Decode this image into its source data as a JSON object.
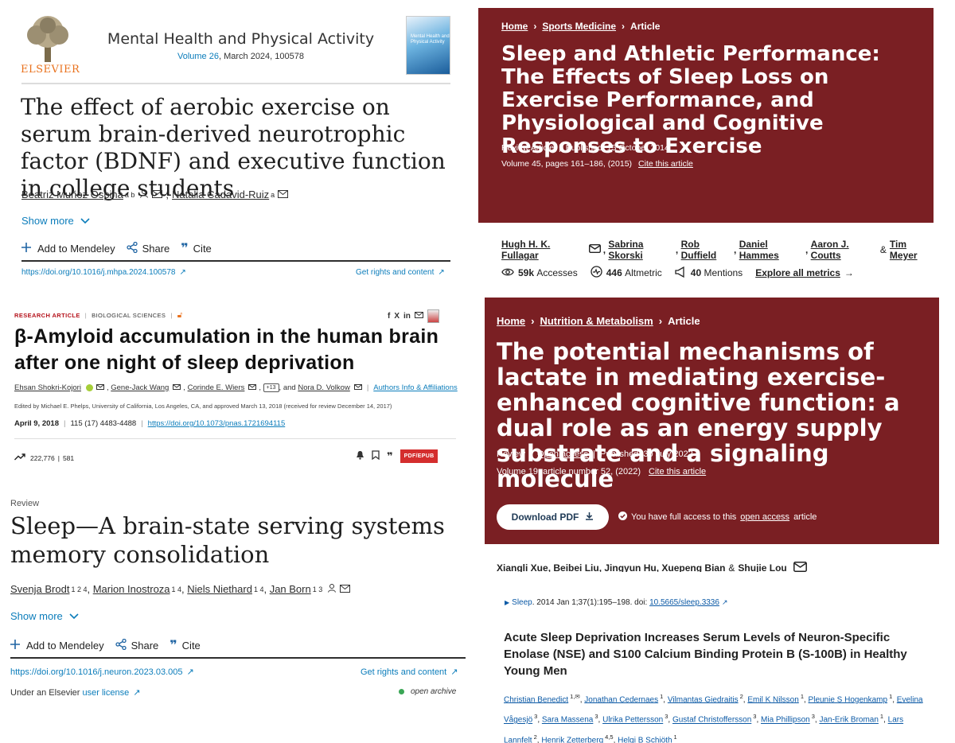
{
  "p1": {
    "publisher": "ELSEVIER",
    "journal": "Mental Health and Physical Activity",
    "volume_link": "Volume 26",
    "volume_rest": ", March 2024, 100578",
    "cover_text": "Mental Health and Physical Activity",
    "title": "The effect of aerobic exercise on serum brain-derived neurotrophic factor (BDNF) and executive function in college students",
    "authors": [
      {
        "name": "Beatriz Muñoz Ospina",
        "sup": "a b"
      },
      {
        "name": "Natalia Cadavid-Ruiz",
        "sup": "a"
      }
    ],
    "show_more": "Show more",
    "add_mendeley": "Add to Mendeley",
    "share": "Share",
    "cite": "Cite",
    "doi": "https://doi.org/10.1016/j.mhpa.2024.100578",
    "rights": "Get rights and content"
  },
  "p2": {
    "crumbs": [
      "Home",
      "Sports Medicine",
      "Article"
    ],
    "title": "Sleep and Athletic Performance: The Effects of Sleep Loss on Exercise Performance, and Physiological and Cognitive Responses to Exercise",
    "type": "Review Article",
    "published": "Published: 15 October 2014",
    "volume": "Volume 45, pages 161–186, (2015)",
    "cite_link": "Cite this article",
    "authors": [
      "Hugh H. K. Fullagar",
      "Sabrina Skorski",
      "Rob Duffield",
      "Daniel Hammes",
      "Aaron J. Coutts",
      "Tim Meyer"
    ],
    "amp": "&",
    "accesses_value": "59k",
    "accesses_label": "Accesses",
    "altmetric_value": "446",
    "altmetric_label": "Altmetric",
    "mentions_value": "40",
    "mentions_label": "Mentions",
    "explore": "Explore all metrics"
  },
  "p3": {
    "kicker_type": "RESEARCH ARTICLE",
    "kicker_section": "BIOLOGICAL SCIENCES",
    "title": "β-Amyloid accumulation in the human brain after one night of sleep deprivation",
    "authors": [
      "Ehsan Shokri-Kojori",
      "Gene-Jack Wang",
      "Corinde E. Wiers"
    ],
    "more_badge": "+13",
    "and": ", and",
    "last_author": "Nora D. Volkow",
    "affiliations": "Authors Info & Affiliations",
    "edited": "Edited by Michael E. Phelps, University of California, Los Angeles, CA, and approved March 13, 2018 (received for review December 14, 2017)",
    "date": "April 9, 2018",
    "issue": "115 (17) 4483-4488",
    "doi": "https://doi.org/10.1073/pnas.1721694115",
    "stat_views": "222,776",
    "stat_citations": "581",
    "pdf_label": "PDF/EPUB"
  },
  "p4": {
    "type": "Review",
    "title": "Sleep—A brain-state serving systems memory consolidation",
    "authors": [
      {
        "name": "Svenja Brodt",
        "sup": "1 2 4"
      },
      {
        "name": "Marion Inostroza",
        "sup": "1 4"
      },
      {
        "name": "Niels Niethard",
        "sup": "1 4"
      },
      {
        "name": "Jan Born",
        "sup": "1 3"
      }
    ],
    "show_more": "Show more",
    "add_mendeley": "Add to Mendeley",
    "share": "Share",
    "cite": "Cite",
    "doi": "https://doi.org/10.1016/j.neuron.2023.03.005",
    "rights": "Get rights and content",
    "license_prefix": "Under an Elsevier",
    "license_link": "user license",
    "archive": "open archive"
  },
  "p5": {
    "crumbs": [
      "Home",
      "Nutrition & Metabolism",
      "Article"
    ],
    "title": "The potential mechanisms of lactate in mediating exercise-enhanced cognitive function: a dual role as an energy supply substrate and a signaling molecule",
    "type": "Review",
    "open_access": "Open access",
    "published": "Published: 30 July 2022",
    "volume": "Volume 19, article number 52, (2022)",
    "cite_link": "Cite this article",
    "download": "Download PDF",
    "access_prefix": "You have full access to this",
    "access_link": "open access",
    "access_suffix": "article",
    "authors": [
      "Xiangli Xue",
      "Beibei Liu",
      "Jingyun Hu",
      "Xuepeng Bian",
      "Shujie Lou"
    ],
    "amp": "&"
  },
  "p6": {
    "journal": "Sleep",
    "cite_rest": ". 2014 Jan 1;37(1):195–198. doi:",
    "doi": "10.5665/sleep.3336",
    "title": "Acute Sleep Deprivation Increases Serum Levels of Neuron-Specific Enolase (NSE) and S100 Calcium Binding Protein B (S-100B) in Healthy Young Men",
    "authors": [
      {
        "name": "Christian Benedict",
        "sup": "1,✉"
      },
      {
        "name": "Jonathan Cedernaes",
        "sup": "1"
      },
      {
        "name": "Vilmantas Giedraitis",
        "sup": "2"
      },
      {
        "name": "Emil K Nilsson",
        "sup": "1"
      },
      {
        "name": "Pleunie S Hogenkamp",
        "sup": "1"
      },
      {
        "name": "Evelina Vågesjö",
        "sup": "3"
      },
      {
        "name": "Sara Massena",
        "sup": "3"
      },
      {
        "name": "Ulrika Pettersson",
        "sup": "3"
      },
      {
        "name": "Gustaf Christoffersson",
        "sup": "3"
      },
      {
        "name": "Mia Phillipson",
        "sup": "3"
      },
      {
        "name": "Jan-Erik Broman",
        "sup": "1"
      },
      {
        "name": "Lars Lannfelt",
        "sup": "2"
      },
      {
        "name": "Henrik Zetterberg",
        "sup": "4,5"
      },
      {
        "name": "Helgi B Schiöth",
        "sup": "1"
      }
    ]
  }
}
